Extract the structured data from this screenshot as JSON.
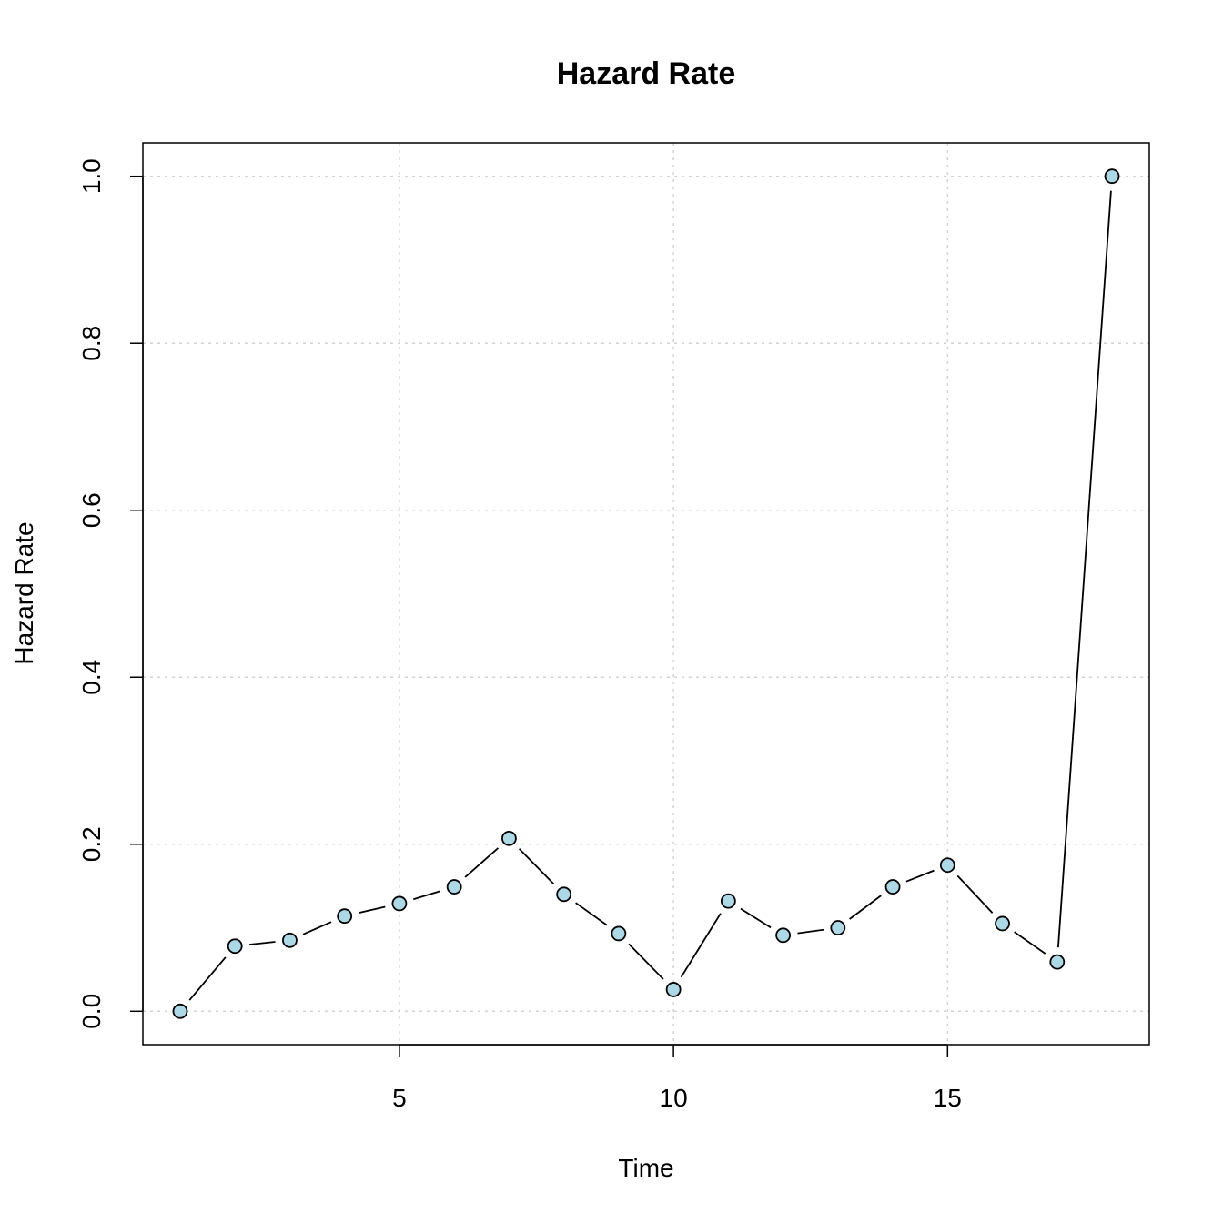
{
  "chart_data": {
    "type": "line",
    "title": "Hazard Rate",
    "xlabel": "Time",
    "ylabel": "Hazard Rate",
    "xlim": [
      0.32,
      18.68
    ],
    "ylim": [
      -0.04,
      1.04
    ],
    "x_ticks": [
      5,
      10,
      15
    ],
    "x_tick_labels": [
      "5",
      "10",
      "15"
    ],
    "y_ticks": [
      0,
      0.2,
      0.4,
      0.6,
      0.8,
      1.0
    ],
    "y_tick_labels": [
      "0.0",
      "0.2",
      "0.4",
      "0.6",
      "0.8",
      "1.0"
    ],
    "grid": true,
    "colors": {
      "point_fill": "#add8e6",
      "line": "#000000",
      "grid": "#d3d3d3"
    },
    "series": [
      {
        "x": [
          1,
          2,
          3,
          4,
          5,
          6,
          7,
          8,
          9,
          10,
          11,
          12,
          13,
          14,
          15,
          16,
          17,
          18
        ],
        "y": [
          0.0,
          0.078,
          0.085,
          0.114,
          0.129,
          0.149,
          0.207,
          0.14,
          0.093,
          0.026,
          0.132,
          0.091,
          0.1,
          0.149,
          0.175,
          0.105,
          0.059,
          1.0
        ]
      }
    ]
  }
}
